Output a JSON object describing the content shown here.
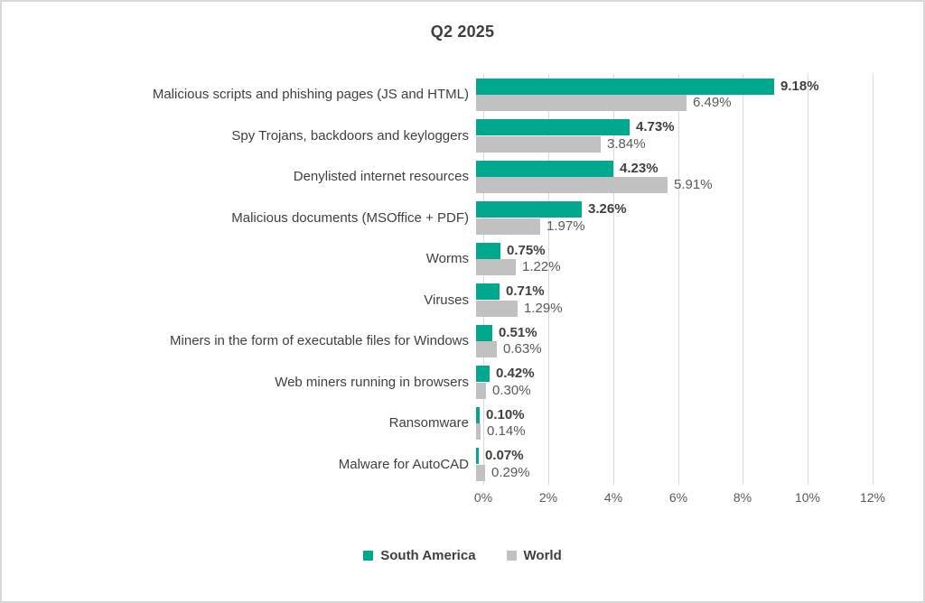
{
  "title": "Q2 2025",
  "chart_data": {
    "type": "bar",
    "orientation": "horizontal",
    "title": "Q2 2025",
    "categories": [
      "Malicious scripts and phishing pages (JS and HTML)",
      "Spy Trojans, backdoors and keyloggers",
      "Denylisted internet resources",
      "Malicious documents (MSOffice + PDF)",
      "Worms",
      "Viruses",
      "Miners in the form of executable files for Windows",
      "Web miners running in browsers",
      "Ransomware",
      "Malware for AutoCAD"
    ],
    "series": [
      {
        "name": "South America",
        "color": "#00A88D",
        "values": [
          9.18,
          4.73,
          4.23,
          3.26,
          0.75,
          0.71,
          0.51,
          0.42,
          0.1,
          0.07
        ],
        "labels": [
          "9.18%",
          "4.73%",
          "4.23%",
          "3.26%",
          "0.75%",
          "0.71%",
          "0.51%",
          "0.42%",
          "0.10%",
          "0.07%"
        ]
      },
      {
        "name": "World",
        "color": "#C1C1C1",
        "values": [
          6.49,
          3.84,
          5.91,
          1.97,
          1.22,
          1.29,
          0.63,
          0.3,
          0.14,
          0.29
        ],
        "labels": [
          "6.49%",
          "3.84%",
          "5.91%",
          "1.97%",
          "1.22%",
          "1.29%",
          "0.63%",
          "0.30%",
          "0.14%",
          "0.29%"
        ]
      }
    ],
    "xlim": [
      0,
      12
    ],
    "x_ticks": [
      "0%",
      "2%",
      "4%",
      "6%",
      "8%",
      "10%",
      "12%"
    ],
    "grid": true,
    "legend_position": "bottom",
    "colors": {
      "grid": "#d9d9d9",
      "sa_value_text": "#404040",
      "world_value_text": "#595959",
      "category_text": "#404040",
      "tick_text": "#595959",
      "title_text": "#3f3f3f"
    }
  },
  "legend": {
    "items": [
      {
        "label": "South America",
        "color": "#00A88D"
      },
      {
        "label": "World",
        "color": "#C1C1C1"
      }
    ]
  }
}
